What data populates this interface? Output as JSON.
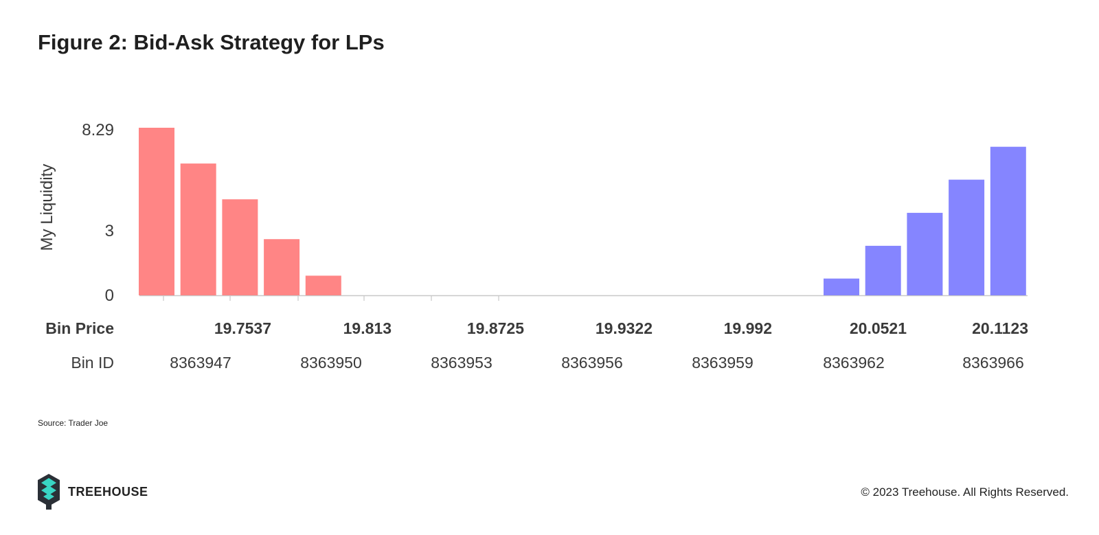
{
  "title": "Figure 2: Bid-Ask Strategy for LPs",
  "source": "Source: Trader Joe",
  "brand": {
    "name": "TREEHOUSE",
    "icon": "treehouse-logo-icon"
  },
  "copyright": "© 2023 Treehouse. All Rights Reserved.",
  "chart_data": {
    "type": "bar",
    "ylabel": "My Liquidity",
    "y_ticks": [
      "8.29",
      "3",
      "0"
    ],
    "ylim": [
      0,
      8.29
    ],
    "price_row_label": "Bin Price",
    "bin_row_label": "Bin ID",
    "price_ticks": [
      "19.7537",
      "19.813",
      "19.8725",
      "19.9322",
      "19.992",
      "20.0521",
      "20.1123"
    ],
    "bin_ticks": [
      "8363947",
      "8363950",
      "8363953",
      "8363956",
      "8363959",
      "8363962",
      "8363966"
    ],
    "colors": {
      "bid": "#ff8585",
      "ask": "#8585ff",
      "axis": "#c8c8c8"
    },
    "series": [
      {
        "side": "bid",
        "values": [
          8.29,
          6.52,
          4.75,
          2.78,
          0.97
        ]
      },
      {
        "side": "ask",
        "values": [
          0.83,
          2.45,
          4.08,
          5.72,
          7.35
        ]
      }
    ]
  }
}
